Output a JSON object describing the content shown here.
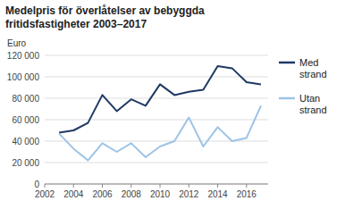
{
  "chart_data": {
    "type": "line",
    "title": "Medelpris för överlåtelser av bebyggda\nfritidsfastigheter 2003–2017",
    "y_label": "Euro",
    "x": [
      2003,
      2004,
      2005,
      2006,
      2007,
      2008,
      2009,
      2010,
      2011,
      2012,
      2013,
      2014,
      2015,
      2016,
      2017
    ],
    "series": [
      {
        "name": "Med\nstrand",
        "color": "#1F3864",
        "values": [
          48000,
          50000,
          57000,
          83000,
          68000,
          79000,
          73000,
          93000,
          83000,
          86000,
          88000,
          110000,
          108000,
          95000,
          93000
        ]
      },
      {
        "name": "Utan\nstrand",
        "color": "#9DC3E6",
        "values": [
          47000,
          33000,
          22000,
          38000,
          30000,
          38000,
          25000,
          35000,
          40000,
          62000,
          35000,
          53000,
          40000,
          43000,
          73000
        ]
      }
    ],
    "xlim": [
      2002,
      2017.5
    ],
    "ylim": [
      0,
      120000
    ],
    "xticks": [
      2002,
      2004,
      2006,
      2008,
      2010,
      2012,
      2014,
      2016
    ],
    "yticks": [
      0,
      {
        "value": 20000,
        "label": "20 000"
      },
      {
        "value": 40000,
        "label": "40 000"
      },
      {
        "value": 60000,
        "label": "60 000"
      },
      {
        "value": 80000,
        "label": "80 000"
      },
      {
        "value": 100000,
        "label": "100 000"
      },
      {
        "value": 120000,
        "label": "120 000"
      }
    ],
    "grid": true,
    "legend": "right"
  }
}
